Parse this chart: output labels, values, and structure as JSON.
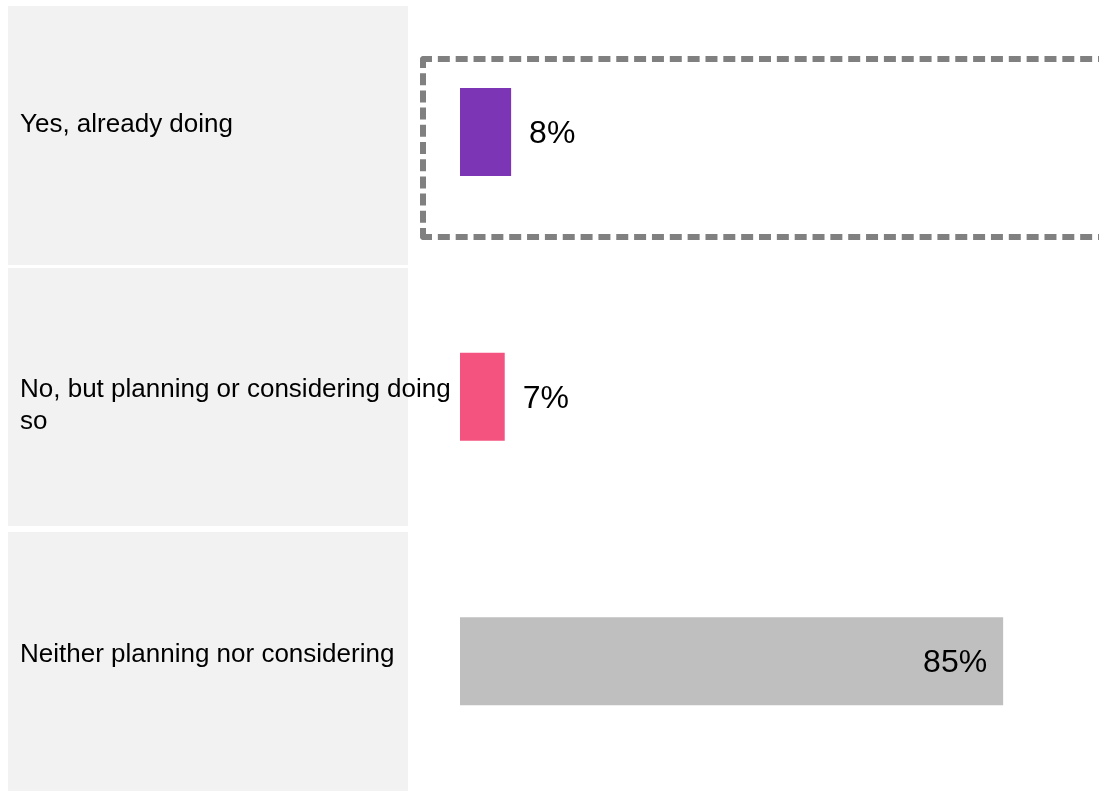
{
  "chart_data": {
    "type": "bar",
    "orientation": "horizontal",
    "categories": [
      "Yes, already doing",
      "No, but planning or considering doing so",
      "Neither planning nor considering"
    ],
    "values": [
      8,
      7,
      85
    ],
    "colors": [
      "#7b35b5",
      "#f5537f",
      "#bfbfbf"
    ],
    "value_labels": [
      "8%",
      "7%",
      "85%"
    ]
  }
}
